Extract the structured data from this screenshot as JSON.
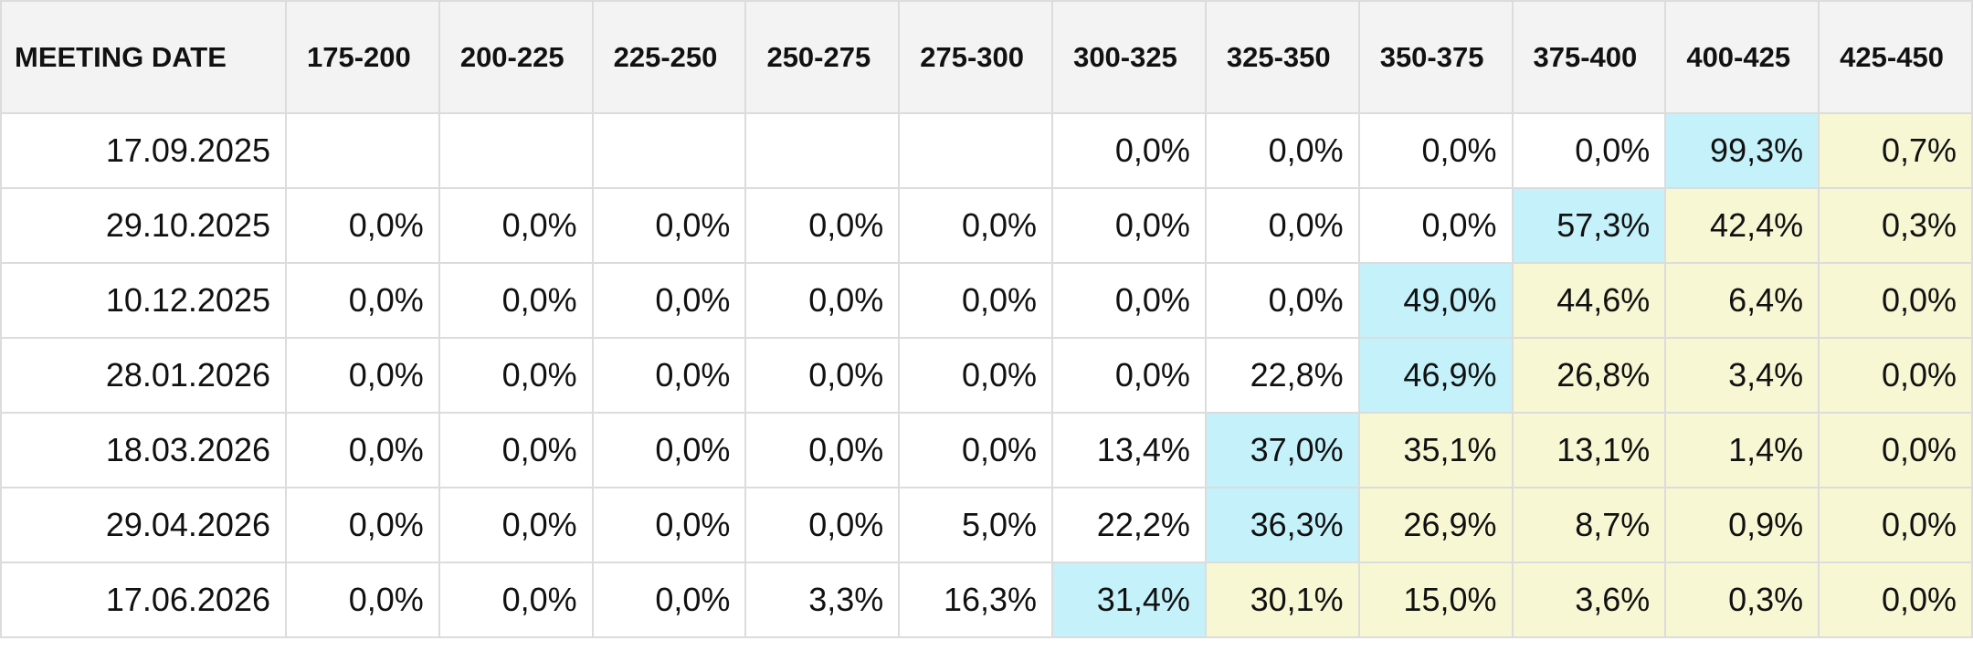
{
  "table": {
    "header": [
      "MEETING DATE",
      "175-200",
      "200-225",
      "225-250",
      "250-275",
      "275-300",
      "300-325",
      "325-350",
      "350-375",
      "375-400",
      "400-425",
      "425-450"
    ],
    "rows": [
      {
        "date": "17.09.2025",
        "cells": [
          null,
          null,
          null,
          null,
          null,
          "0,0%",
          "0,0%",
          "0,0%",
          "0,0%",
          "99,3%",
          "0,7%"
        ],
        "fills": [
          null,
          null,
          null,
          null,
          null,
          null,
          null,
          null,
          null,
          "#c4f1fa",
          "#f8f7d4"
        ]
      },
      {
        "date": "29.10.2025",
        "cells": [
          "0,0%",
          "0,0%",
          "0,0%",
          "0,0%",
          "0,0%",
          "0,0%",
          "0,0%",
          "0,0%",
          "57,3%",
          "42,4%",
          "0,3%"
        ],
        "fills": [
          null,
          null,
          null,
          null,
          null,
          null,
          null,
          null,
          "#c4f1fa",
          "#f8f7d4",
          "#f8f7d4"
        ]
      },
      {
        "date": "10.12.2025",
        "cells": [
          "0,0%",
          "0,0%",
          "0,0%",
          "0,0%",
          "0,0%",
          "0,0%",
          "0,0%",
          "49,0%",
          "44,6%",
          "6,4%",
          "0,0%"
        ],
        "fills": [
          null,
          null,
          null,
          null,
          null,
          null,
          null,
          "#c4f1fa",
          "#f8f7d4",
          "#f8f7d4",
          "#f8f7d4"
        ]
      },
      {
        "date": "28.01.2026",
        "cells": [
          "0,0%",
          "0,0%",
          "0,0%",
          "0,0%",
          "0,0%",
          "0,0%",
          "22,8%",
          "46,9%",
          "26,8%",
          "3,4%",
          "0,0%"
        ],
        "fills": [
          null,
          null,
          null,
          null,
          null,
          null,
          null,
          "#c4f1fa",
          "#f8f7d4",
          "#f8f7d4",
          "#f8f7d4"
        ]
      },
      {
        "date": "18.03.2026",
        "cells": [
          "0,0%",
          "0,0%",
          "0,0%",
          "0,0%",
          "0,0%",
          "13,4%",
          "37,0%",
          "35,1%",
          "13,1%",
          "1,4%",
          "0,0%"
        ],
        "fills": [
          null,
          null,
          null,
          null,
          null,
          null,
          "#c4f1fa",
          "#f8f7d4",
          "#f8f7d4",
          "#f8f7d4",
          "#f8f7d4"
        ]
      },
      {
        "date": "29.04.2026",
        "cells": [
          "0,0%",
          "0,0%",
          "0,0%",
          "0,0%",
          "5,0%",
          "22,2%",
          "36,3%",
          "26,9%",
          "8,7%",
          "0,9%",
          "0,0%"
        ],
        "fills": [
          null,
          null,
          null,
          null,
          null,
          null,
          "#c4f1fa",
          "#f8f7d4",
          "#f8f7d4",
          "#f8f7d4",
          "#f8f7d4"
        ]
      },
      {
        "date": "17.06.2026",
        "cells": [
          "0,0%",
          "0,0%",
          "0,0%",
          "3,3%",
          "16,3%",
          "31,4%",
          "30,1%",
          "15,0%",
          "3,6%",
          "0,3%",
          "0,0%"
        ],
        "fills": [
          null,
          null,
          null,
          null,
          null,
          "#c4f1fa",
          "#f8f7d4",
          "#f8f7d4",
          "#f8f7d4",
          "#f8f7d4",
          "#f8f7d4"
        ]
      }
    ]
  }
}
